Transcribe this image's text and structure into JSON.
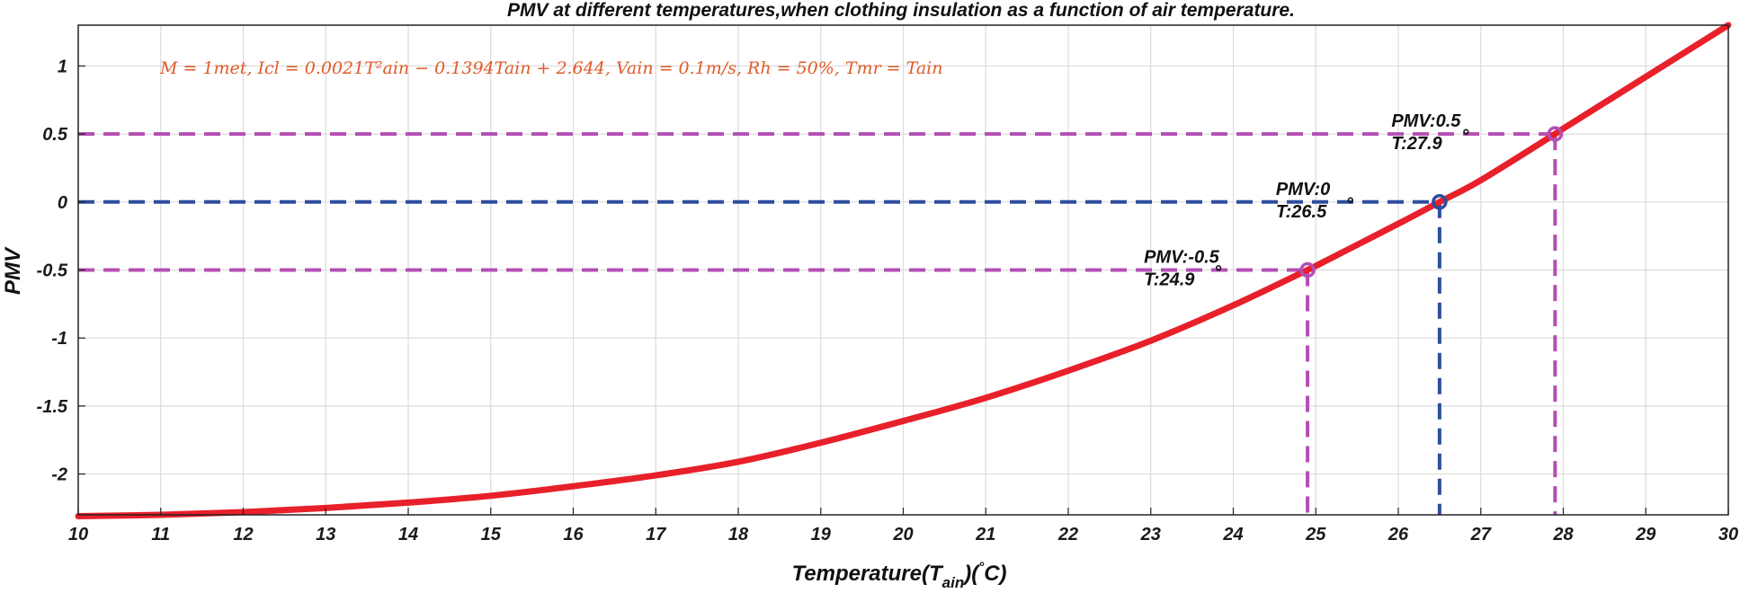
{
  "chart_data": {
    "type": "line",
    "title": "PMV at different temperatures,when clothing insulation as a function of air temperature.",
    "xlabel": "Temperature(T_ain)(°C)",
    "xlabel_parts": {
      "main": "Temperature(T",
      "sub": "ain",
      "tail": ")(",
      "deg": "°",
      "unit": "C)"
    },
    "ylabel": "PMV",
    "xlim": [
      10,
      30
    ],
    "ylim": [
      -2.3,
      1.3
    ],
    "xticks": [
      10,
      11,
      12,
      13,
      14,
      15,
      16,
      17,
      18,
      19,
      20,
      21,
      22,
      23,
      24,
      25,
      26,
      27,
      28,
      29,
      30
    ],
    "yticks": [
      1,
      0.5,
      0,
      -0.5,
      -1,
      -1.5,
      -2
    ],
    "grid": true,
    "equation": "M = 1met, Icl = 0.0021T²ain − 0.1394Tain + 2.644, Vain = 0.1m/s, Rh = 50%, Tmr = Tain",
    "series": [
      {
        "name": "PMV",
        "color": "#e8202a",
        "x": [
          10,
          11,
          12,
          13,
          14,
          15,
          16,
          17,
          18,
          19,
          20,
          21,
          22,
          23,
          24,
          24.9,
          25,
          26,
          26.5,
          27,
          27.9,
          28,
          29,
          30
        ],
        "y": [
          -2.31,
          -2.3,
          -2.28,
          -2.25,
          -2.21,
          -2.16,
          -2.09,
          -2.01,
          -1.91,
          -1.77,
          -1.61,
          -1.44,
          -1.24,
          -1.02,
          -0.76,
          -0.5,
          -0.47,
          -0.16,
          0.0,
          0.16,
          0.5,
          0.54,
          0.92,
          1.3
        ]
      }
    ],
    "markers": [
      {
        "x": 24.9,
        "y": -0.5,
        "pmv_label": "PMV:-0.5",
        "t_label": "T:24.9",
        "deg": "°",
        "color": "#b44fb4"
      },
      {
        "x": 26.5,
        "y": 0,
        "pmv_label": "PMV:0",
        "t_label": "T:26.5",
        "deg": "°",
        "color": "#2d4d9e"
      },
      {
        "x": 27.9,
        "y": 0.5,
        "pmv_label": "PMV:0.5",
        "t_label": "T:27.9",
        "deg": "°",
        "color": "#b44fb4"
      }
    ]
  }
}
